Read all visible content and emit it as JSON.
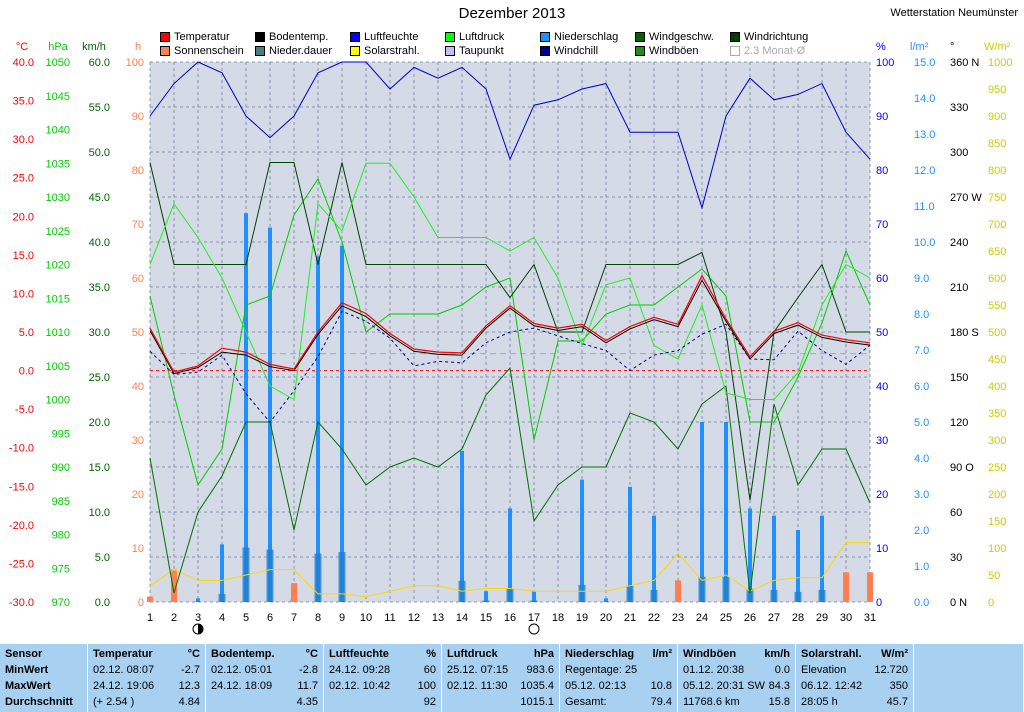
{
  "title": "Dezember 2013",
  "station": "Wetterstation Neumünster",
  "legend": [
    {
      "label": "Temperatur",
      "color": "#ff0000"
    },
    {
      "label": "Bodentemp.",
      "color": "#000000"
    },
    {
      "label": "Luftfeuchte",
      "color": "#0000ff"
    },
    {
      "label": "Luftdruck",
      "color": "#00ff00"
    },
    {
      "label": "Niederschlag",
      "color": "#1e90ff"
    },
    {
      "label": "Windgeschw.",
      "color": "#006400"
    },
    {
      "label": "Windrichtung",
      "color": "#004000"
    },
    {
      "label": "Sonnenschein",
      "color": "#ff7f50"
    },
    {
      "label": "Nieder.dauer",
      "color": "#4b7f7f"
    },
    {
      "label": "Solarstrahl.",
      "color": "#ffff00"
    },
    {
      "label": "Taupunkt",
      "color": "#c0c0ff"
    },
    {
      "label": "Windchill",
      "color": "#00008b"
    },
    {
      "label": "Windböen",
      "color": "#228b22"
    },
    {
      "label": "2.3 Monat-Ø",
      "color": "#ffffff"
    }
  ],
  "axes": {
    "temp": {
      "unit": "°C",
      "ticks": [
        "40.0",
        "35.0",
        "30.0",
        "25.0",
        "20.0",
        "15.0",
        "10.0",
        "5.0",
        "0.0",
        "-5.0",
        "-10.0",
        "-15.0",
        "-20.0",
        "-25.0",
        "-30.0"
      ],
      "color": "#ff0000"
    },
    "press": {
      "unit": "hPa",
      "ticks": [
        "1050",
        "1045",
        "1040",
        "1035",
        "1030",
        "1025",
        "1020",
        "1015",
        "1010",
        "1005",
        "1000",
        "995",
        "990",
        "985",
        "980",
        "975",
        "970"
      ],
      "color": "#00cc00"
    },
    "wind": {
      "unit": "km/h",
      "ticks": [
        "60.0",
        "55.0",
        "50.0",
        "45.0",
        "40.0",
        "35.0",
        "30.0",
        "25.0",
        "20.0",
        "15.0",
        "10.0",
        "5.0",
        "0.0"
      ],
      "color": "#006400"
    },
    "hours": {
      "unit": "h",
      "ticks": [
        "100",
        "90",
        "80",
        "70",
        "60",
        "50",
        "40",
        "30",
        "20",
        "10",
        "0"
      ],
      "color": "#ff7f50"
    },
    "hum": {
      "unit": "%",
      "ticks": [
        "100",
        "90",
        "80",
        "70",
        "60",
        "50",
        "40",
        "30",
        "20",
        "10",
        "0"
      ],
      "color": "#0000ff"
    },
    "rain": {
      "unit": "l/m²",
      "ticks": [
        "15.0",
        "14.0",
        "13.0",
        "12.0",
        "11.0",
        "10.0",
        "9.0",
        "8.0",
        "7.0",
        "6.0",
        "5.0",
        "4.0",
        "3.0",
        "2.0",
        "1.0",
        "0.0"
      ],
      "color": "#1e90ff"
    },
    "dir": {
      "unit": "°",
      "ticks": [
        "360 N",
        "330",
        "300",
        "270 W",
        "240",
        "210",
        "180 S",
        "150",
        "120",
        "90 O",
        "60",
        "30",
        "0 N"
      ],
      "color": "#000000"
    },
    "solar": {
      "unit": "W/m²",
      "ticks": [
        "1000",
        "950",
        "900",
        "850",
        "800",
        "750",
        "700",
        "650",
        "600",
        "550",
        "500",
        "450",
        "400",
        "350",
        "300",
        "250",
        "200",
        "150",
        "100",
        "50",
        "0"
      ],
      "color": "#cccc00"
    },
    "days": [
      "1",
      "2",
      "3",
      "4",
      "5",
      "6",
      "7",
      "8",
      "9",
      "10",
      "11",
      "12",
      "13",
      "14",
      "15",
      "16",
      "17",
      "18",
      "19",
      "20",
      "21",
      "22",
      "23",
      "24",
      "25",
      "26",
      "27",
      "28",
      "29",
      "30",
      "31"
    ]
  },
  "chart_data": {
    "type": "line",
    "x": [
      1,
      2,
      3,
      4,
      5,
      6,
      7,
      8,
      9,
      10,
      11,
      12,
      13,
      14,
      15,
      16,
      17,
      18,
      19,
      20,
      21,
      22,
      23,
      24,
      25,
      26,
      27,
      28,
      29,
      30,
      31
    ],
    "series": [
      {
        "name": "Temperatur",
        "unit": "°C",
        "values": [
          5.5,
          -0.2,
          0.6,
          2.9,
          2.4,
          0.8,
          0.2,
          5.0,
          8.8,
          7.4,
          4.8,
          2.8,
          2.4,
          2.3,
          5.8,
          8.4,
          6.1,
          5.5,
          6.0,
          3.9,
          5.7,
          6.9,
          6.0,
          12.3,
          6.7,
          1.8,
          5.1,
          6.2,
          4.6,
          4.0,
          3.6
        ],
        "color": "#ff0000"
      },
      {
        "name": "Bodentemp.",
        "unit": "°C",
        "values": [
          5.2,
          -0.4,
          0.4,
          2.4,
          2.0,
          0.5,
          0.0,
          4.7,
          8.4,
          7.0,
          4.5,
          2.5,
          2.1,
          2.0,
          5.5,
          8.1,
          5.8,
          5.2,
          5.7,
          3.6,
          5.4,
          6.6,
          5.7,
          11.7,
          6.4,
          1.5,
          4.8,
          5.9,
          4.3,
          3.7,
          3.3
        ],
        "color": "#000000"
      },
      {
        "name": "Luftfeuchte",
        "unit": "%",
        "values": [
          90,
          96,
          100,
          98,
          90,
          86,
          90,
          98,
          100,
          100,
          95,
          99,
          97,
          99,
          95,
          82,
          92,
          93,
          95,
          96,
          87,
          87,
          87,
          73,
          90,
          97,
          93,
          94,
          96,
          87,
          82
        ],
        "color": "#0000cc"
      },
      {
        "name": "Taupunkt",
        "unit": "°C",
        "values": [
          2.5,
          -0.5,
          -0.2,
          2.0,
          -3.0,
          -6.7,
          -2.6,
          1.8,
          7.7,
          6.4,
          4.2,
          0.6,
          1.2,
          1.0,
          3.6,
          5.0,
          5.5,
          4.5,
          3.5,
          2.6,
          0.0,
          2.0,
          2.6,
          4.7,
          6.0,
          1.5,
          1.4,
          5.1,
          2.6,
          0.8,
          3.3
        ],
        "color": "#000080"
      },
      {
        "name": "Luftdruck",
        "unit": "hPa",
        "values": [
          1020,
          1029,
          1024,
          1018,
          1010,
          1002,
          1000,
          1029,
          1025,
          1035,
          1035,
          1030,
          1024,
          1024,
          1024,
          1022,
          1024,
          1018,
          1008,
          1017,
          1018,
          1008,
          1006,
          1014,
          1001,
          1000,
          1000,
          1004,
          1014,
          1020,
          1018
        ],
        "color": "#00ff00"
      },
      {
        "name": "Windböen",
        "unit": "km/h",
        "values": [
          34,
          23,
          13,
          17,
          33,
          34,
          43,
          47,
          40,
          30,
          32,
          32,
          32,
          33,
          35,
          36,
          18,
          29,
          29,
          32,
          33,
          33,
          35,
          37,
          34,
          20,
          20,
          25,
          31,
          39,
          33
        ],
        "color": "#00cc00"
      },
      {
        "name": "Windgeschw.",
        "unit": "km/h",
        "values": [
          16,
          1,
          10,
          14,
          20,
          20,
          8,
          20,
          17,
          13,
          15,
          16,
          15,
          17,
          23,
          26,
          9,
          13,
          15,
          15,
          21,
          20,
          17,
          22,
          24,
          1,
          22,
          13,
          17,
          17,
          11
        ],
        "color": "#007000"
      },
      {
        "name": "Windrichtung",
        "unit": "°",
        "values": [
          293,
          225,
          225,
          225,
          225,
          293,
          293,
          225,
          293,
          225,
          225,
          225,
          225,
          225,
          225,
          203,
          225,
          180,
          180,
          225,
          225,
          225,
          225,
          233,
          180,
          68,
          180,
          203,
          225,
          180,
          180
        ],
        "color": "#004000"
      },
      {
        "name": "Niederschlag",
        "unit": "l/m²",
        "values": [
          0.0,
          0.2,
          0.1,
          1.6,
          10.8,
          10.4,
          0.5,
          9.6,
          9.9,
          0.0,
          0.0,
          0.0,
          0.0,
          4.2,
          0.3,
          2.6,
          0.3,
          0.0,
          3.4,
          0.1,
          3.2,
          2.4,
          0.0,
          5.0,
          5.0,
          2.6,
          2.4,
          2.0,
          2.4,
          0.0,
          0.0
        ],
        "color": "#1e90ff"
      },
      {
        "name": "Nieder.dauer",
        "unit": "h",
        "values": [
          0,
          0,
          0,
          0,
          0,
          0,
          0,
          0,
          0,
          0,
          0,
          0,
          0,
          0,
          0,
          0,
          0,
          0,
          0,
          0,
          0,
          0,
          0,
          0,
          0,
          0,
          0,
          0,
          0,
          0,
          0
        ],
        "color": "#4b7f7f"
      },
      {
        "name": "Sonnenschein",
        "unit": "h",
        "values": [
          1.0,
          6.0,
          0.0,
          0.0,
          0.0,
          0.0,
          3.5,
          0.0,
          0.0,
          0.0,
          0.0,
          0.0,
          0.0,
          0.0,
          0.0,
          0.0,
          0.0,
          0.0,
          0.0,
          0.0,
          0.0,
          0.0,
          4.0,
          0.0,
          0.0,
          0.0,
          0.0,
          0.0,
          0.0,
          5.5,
          5.5
        ],
        "color": "#ff7f50"
      },
      {
        "name": "Solarstrahl.",
        "unit": "W/m²",
        "values": [
          30,
          60,
          40,
          40,
          50,
          60,
          60,
          15,
          15,
          10,
          20,
          30,
          30,
          20,
          25,
          25,
          20,
          20,
          20,
          20,
          30,
          40,
          90,
          40,
          50,
          20,
          40,
          45,
          45,
          110,
          110
        ],
        "color": "#ffd700"
      }
    ],
    "mean_line_humidity": 46,
    "moon_days": [
      3,
      17
    ]
  },
  "stats": {
    "sensor": {
      "header": "Sensor",
      "rows": [
        "MinWert",
        "MaxWert",
        "Durchschnitt"
      ]
    },
    "temp": {
      "header": "Temperatur",
      "unit": "°C",
      "rows": [
        [
          "02.12.  08:07",
          "-2.7"
        ],
        [
          "24.12.  19:06",
          "12.3"
        ],
        [
          "(+ 2.54 )",
          "4.84"
        ]
      ]
    },
    "boden": {
      "header": "Bodentemp.",
      "unit": "°C",
      "rows": [
        [
          "02.12.  05:01",
          "-2.8"
        ],
        [
          "24.12.  18:09",
          "11.7"
        ],
        [
          "",
          "4.35"
        ]
      ]
    },
    "feuchte": {
      "header": "Luftfeuchte",
      "unit": "%",
      "rows": [
        [
          "24.12.  09:28",
          "60"
        ],
        [
          "02.12.  10:42",
          "100"
        ],
        [
          "",
          "92"
        ]
      ]
    },
    "druck": {
      "header": "Luftdruck",
      "unit": "hPa",
      "rows": [
        [
          "25.12.  07:15",
          "983.6"
        ],
        [
          "02.12.  11:30",
          "1035.4"
        ],
        [
          "",
          "1015.1"
        ]
      ]
    },
    "regen": {
      "header": "Niederschlag",
      "unit": "l/m²",
      "rows": [
        [
          "Regentage: 25",
          ""
        ],
        [
          "05.12.  02:13",
          "10.8"
        ],
        [
          "Gesamt:",
          "79.4"
        ]
      ]
    },
    "boeen": {
      "header": "Windböen",
      "unit": "km/h",
      "rows": [
        [
          "01.12.  20:38",
          "0.0"
        ],
        [
          "05.12.  20:31 SW",
          "84.3"
        ],
        [
          "11768.6 km",
          "15.8"
        ]
      ]
    },
    "solar": {
      "header": "Solarstrahl.",
      "unit": "W/m²",
      "rows": [
        [
          "Elevation",
          "12.720"
        ],
        [
          "06.12.  12:42",
          "350"
        ],
        [
          "28:05 h",
          "45.7"
        ]
      ]
    }
  }
}
